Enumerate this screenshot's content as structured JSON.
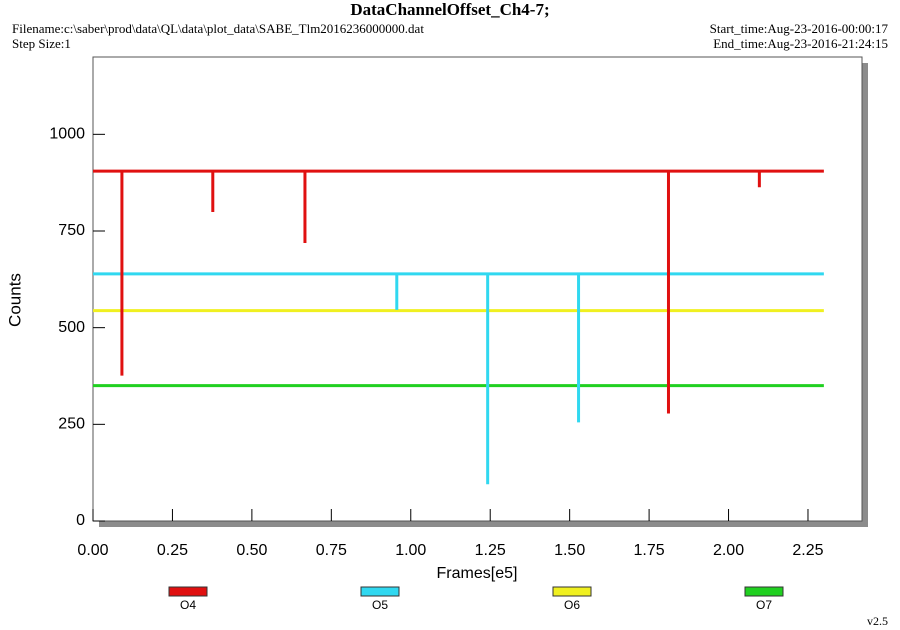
{
  "chart_data": {
    "type": "line",
    "title": "DataChannelOffset_Ch4-7;",
    "filename": "Filename:c:\\saber\\prod\\data\\QL\\data\\plot_data\\SABE_Tlm2016236000000.dat",
    "step_size": "Step Size:1",
    "start_time": "Start_time:Aug-23-2016-00:00:17",
    "end_time": "End_time:Aug-23-2016-21:24:15",
    "version": "v2.5",
    "x_label": "Frames[e5]",
    "y_label": "Counts",
    "xlim": [
      0,
      2.42
    ],
    "ylim": [
      0,
      1200
    ],
    "xticks": [
      {
        "value": 0,
        "label": "0.00"
      },
      0.25,
      {
        "value": 0.5,
        "label": "0.50"
      },
      0.75,
      {
        "value": 1,
        "label": "1.00"
      },
      1.25,
      {
        "value": 1.5,
        "label": "1.50"
      },
      1.75,
      {
        "value": 2,
        "label": "2.00"
      },
      2.25
    ],
    "yticks": [
      0,
      250,
      500,
      750,
      1000
    ],
    "series": [
      {
        "name": "O4",
        "color": "#e01010",
        "x": [
          0,
          0.091,
          0.091,
          0.091,
          0.377,
          0.377,
          0.377,
          0.667,
          0.667,
          0.667,
          1.811,
          1.811,
          1.811,
          2.097,
          2.097,
          2.097,
          2.3
        ],
        "values": [
          905,
          905,
          376,
          905,
          905,
          799,
          905,
          905,
          719,
          905,
          905,
          278,
          905,
          905,
          863,
          905,
          905
        ]
      },
      {
        "name": "O5",
        "color": "#30d8f0",
        "x": [
          0,
          0.956,
          0.956,
          0.956,
          1.242,
          1.242,
          1.242,
          1.528,
          1.528,
          1.528,
          2.3
        ],
        "values": [
          639,
          639,
          546,
          639,
          639,
          95,
          639,
          639,
          255,
          639,
          639
        ]
      },
      {
        "name": "O6",
        "color": "#f0f020",
        "x": [
          0,
          2.3
        ],
        "values": [
          544,
          544
        ]
      },
      {
        "name": "O7",
        "color": "#20d020",
        "x": [
          0,
          2.3
        ],
        "values": [
          350,
          350
        ]
      }
    ]
  }
}
